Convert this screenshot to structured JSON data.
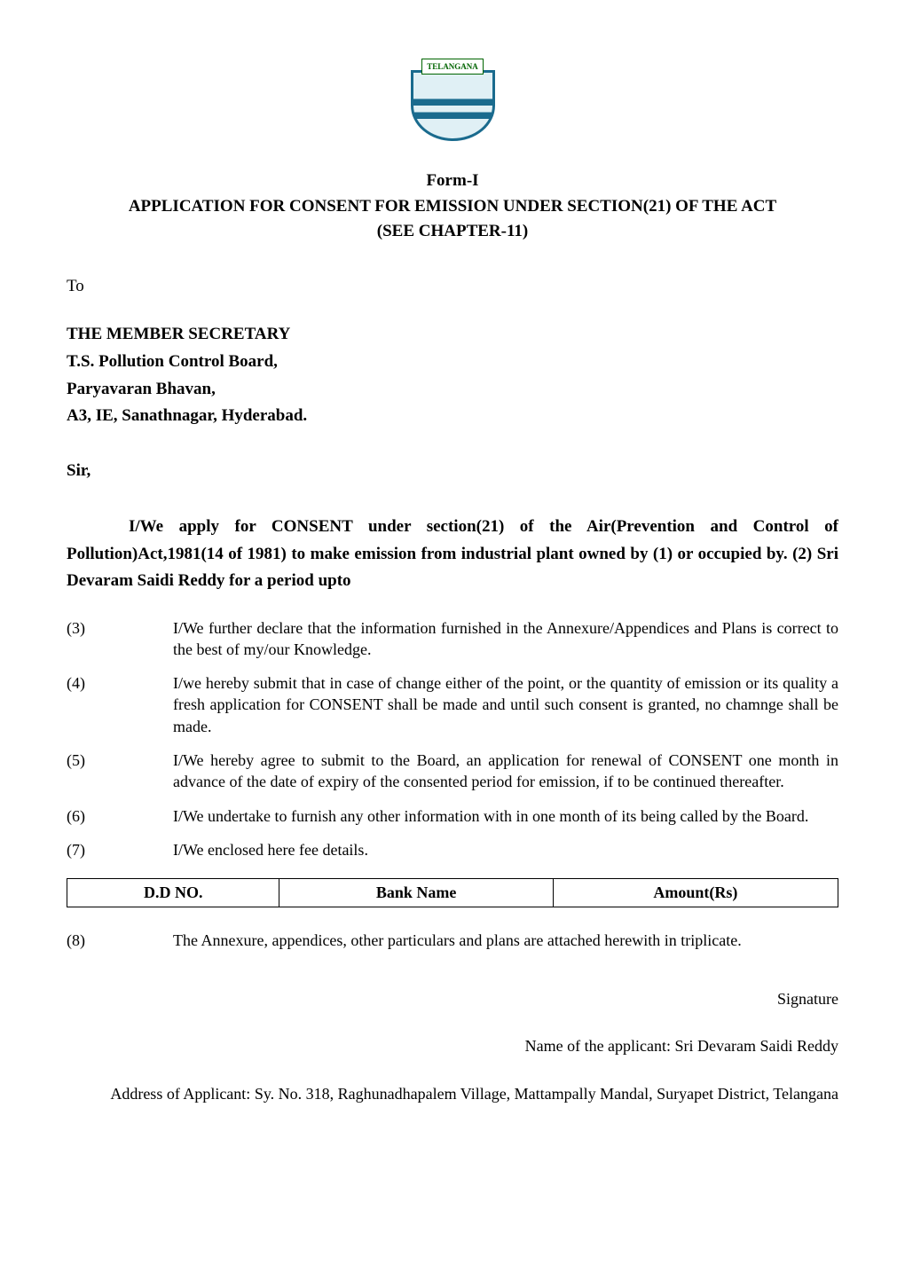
{
  "logo": {
    "badge_text": "TELANGANA",
    "badge_color": "#006400",
    "shield_color": "#1a6b8e"
  },
  "header": {
    "line1": "Form-I",
    "line2": "APPLICATION FOR CONSENT FOR EMISSION UNDER SECTION(21) OF THE ACT",
    "line3": "(SEE CHAPTER-11)"
  },
  "to_label": "To",
  "address": {
    "line1": "THE MEMBER SECRETARY",
    "line2": "T.S. Pollution Control Board,",
    "line3": "Paryavaran Bhavan,",
    "line4": "A3, IE, Sanathnagar, Hyderabad."
  },
  "salutation": "Sir,",
  "intro_paragraph": "I/We apply for CONSENT under section(21) of the Air(Prevention and Control of Pollution)Act,1981(14 of 1981) to make emission from industrial plant owned by (1) or occupied by. (2) Sri Devaram Saidi Reddy for a period upto",
  "items": [
    {
      "num": "(3)",
      "text": "I/We further declare that the information furnished in the Annexure/Appendices and Plans is correct to the best of my/our Knowledge."
    },
    {
      "num": "(4)",
      "text": "I/we hereby submit that in case of change either of the point, or the quantity of emission or its quality a fresh application for CONSENT shall be made and until such consent is granted, no chamnge shall be made."
    },
    {
      "num": "(5)",
      "text": "I/We hereby agree to submit to the Board, an application for renewal of CONSENT one month in advance of the date of expiry of the consented period for emission, if to be continued thereafter."
    },
    {
      "num": "(6)",
      "text": "I/We undertake to furnish any other information with in one month of its being called by the Board."
    },
    {
      "num": "(7)",
      "text": "I/We enclosed here fee details."
    }
  ],
  "fee_table": {
    "columns": [
      "D.D NO.",
      "Bank Name",
      "Amount(Rs)"
    ]
  },
  "item8": {
    "num": "(8)",
    "text": "The Annexure, appendices, other particulars and plans are attached herewith in triplicate."
  },
  "signature": {
    "label": "Signature",
    "name_label": "Name of the applicant: ",
    "name_value": "Sri Devaram Saidi Reddy",
    "address_label": "Address of Applicant: ",
    "address_value": "Sy. No. 318, Raghunadhapalem Village, Mattampally Mandal, Suryapet District, Telangana"
  }
}
